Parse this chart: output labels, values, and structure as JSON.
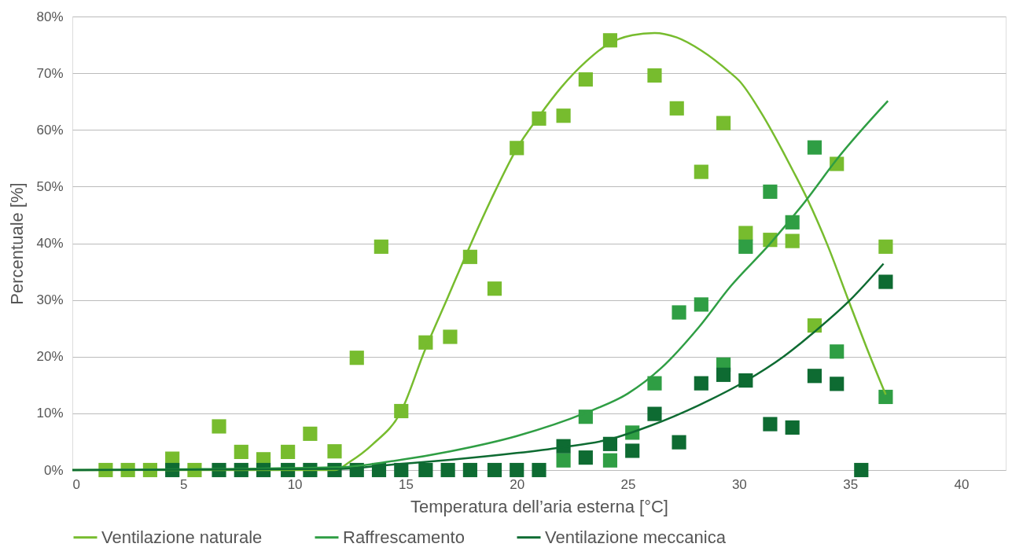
{
  "chart_data": {
    "type": "scatter",
    "xlabel": "Temperatura dell’aria esterna [°C]",
    "ylabel": "Percentuale [%]",
    "xlim": [
      0,
      42
    ],
    "xticks": [
      0,
      5,
      10,
      15,
      20,
      25,
      30,
      35,
      40
    ],
    "ylim": [
      0,
      80
    ],
    "yticks": [
      {
        "value": 0,
        "label": "0%"
      },
      {
        "value": 10,
        "label": "10%"
      },
      {
        "value": 20,
        "label": "20%"
      },
      {
        "value": 30,
        "label": "30%"
      },
      {
        "value": 40,
        "label": "40%"
      },
      {
        "value": 50,
        "label": "50%"
      },
      {
        "value": 60,
        "label": "60%"
      },
      {
        "value": 70,
        "label": "70%"
      },
      {
        "value": 80,
        "label": "80%"
      }
    ],
    "grid": "y",
    "legend": "bottom",
    "marker": "square",
    "series": [
      {
        "color": "#77bc2e",
        "x": [
          1.5,
          2.5,
          3.5,
          4.5,
          5.5,
          6.6,
          7.6,
          8.6,
          9.7,
          10.7,
          11.8,
          12.8,
          13.9,
          14.8,
          15.9,
          17.0,
          17.9,
          19.0,
          20.0,
          21.0,
          22.1,
          23.1,
          24.2,
          26.2,
          27.2,
          28.3,
          29.3,
          30.3,
          31.4,
          32.4,
          33.4,
          34.4,
          36.6
        ],
        "values": [
          0,
          0,
          0,
          2.0,
          0,
          7.7,
          3.2,
          1.9,
          3.2,
          6.4,
          3.3,
          19.8,
          39.4,
          10.4,
          22.5,
          23.5,
          37.6,
          32.0,
          56.8,
          62.0,
          62.5,
          68.9,
          75.8,
          69.6,
          63.8,
          52.6,
          61.2,
          41.8,
          40.6,
          40.4,
          25.5,
          54.0,
          39.4
        ]
      },
      {
        "color": "#2f9e44",
        "x": [
          22.1,
          23.1,
          24.2,
          25.2,
          26.2,
          27.3,
          28.3,
          29.3,
          30.3,
          31.4,
          32.4,
          33.4,
          34.4,
          36.6
        ],
        "values": [
          1.7,
          9.4,
          1.7,
          6.6,
          15.3,
          27.8,
          29.2,
          18.6,
          39.4,
          49.1,
          43.7,
          56.9,
          20.9,
          12.9
        ]
      },
      {
        "color": "#0e6b32",
        "x": [
          4.5,
          6.6,
          7.6,
          8.6,
          9.7,
          10.7,
          11.8,
          12.8,
          13.8,
          14.8,
          15.9,
          16.9,
          17.9,
          19.0,
          20.0,
          21.0,
          22.1,
          23.1,
          24.2,
          25.2,
          26.2,
          27.3,
          28.3,
          29.3,
          30.3,
          31.4,
          32.4,
          33.4,
          34.4,
          35.5,
          36.6
        ],
        "values": [
          0,
          0,
          0,
          0,
          0,
          0,
          0,
          0,
          0,
          0,
          0,
          0,
          0,
          0,
          0,
          0,
          4.2,
          2.2,
          4.6,
          3.4,
          9.9,
          4.9,
          15.3,
          16.8,
          15.8,
          8.1,
          7.5,
          16.6,
          15.2,
          0,
          33.2
        ]
      },
      {
        "type": "line",
        "marker": "none",
        "name": "Ventilazione naturale",
        "color": "#77bc2e",
        "x": [
          0,
          11.8,
          12.5,
          13.5,
          14.8,
          15.85,
          16.9,
          17.9,
          19,
          20,
          21,
          22,
          23.1,
          24.1,
          25.2,
          26.2,
          27.2,
          28.3,
          29.6,
          30,
          31,
          32,
          32.4,
          33.05,
          34,
          34.9,
          35.8,
          36.6
        ],
        "values": [
          0,
          0,
          1.5,
          4.5,
          10.4,
          21,
          30.5,
          39.6,
          49,
          56.7,
          62.4,
          67.5,
          72,
          75.1,
          76.7,
          77.1,
          76.3,
          74,
          70.1,
          68.7,
          63,
          56,
          53,
          48,
          39.5,
          30.2,
          21,
          13.3
        ]
      },
      {
        "type": "line",
        "marker": "none",
        "name": "Raffrescamento",
        "color": "#2f9e44",
        "x": [
          0,
          12,
          14.45,
          17,
          20,
          23.1,
          25,
          26.5,
          28.17,
          29.62,
          31.37,
          33,
          34.4,
          36.7
        ],
        "values": [
          0,
          0.5,
          1.6,
          3.3,
          6,
          10.1,
          13.5,
          18,
          25.1,
          32.4,
          39.8,
          47.5,
          54.8,
          65.1
        ]
      },
      {
        "type": "line",
        "marker": "none",
        "name": "Ventilazione meccanica",
        "color": "#0e6b32",
        "x": [
          0,
          12,
          14.5,
          17,
          20,
          22,
          24.15,
          26,
          28.17,
          30.3,
          32,
          33.4,
          35,
          36.5
        ],
        "values": [
          0,
          0.2,
          1,
          1.8,
          3,
          4,
          5.4,
          7.8,
          11.4,
          15.7,
          20,
          24.4,
          30,
          36.4
        ]
      }
    ]
  }
}
